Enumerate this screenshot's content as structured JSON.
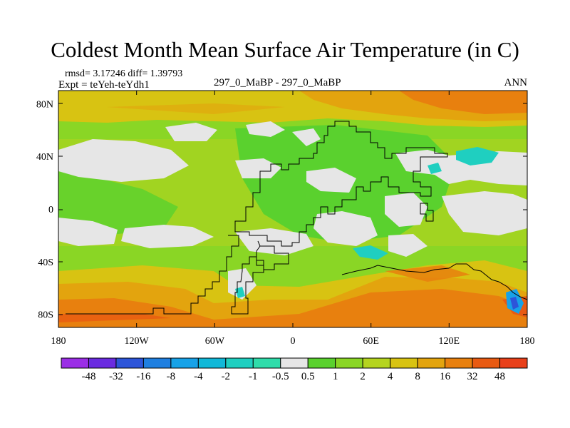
{
  "figure": {
    "title": "Coldest Month Mean Surface Air Temperature (in C)",
    "stats": "rmsd= 3.17246 diff= 1.39793",
    "expt": "Expt = teYeh-teYdh1",
    "center_label": "297_0_MaBP - 297_0_MaBP",
    "season": "ANN"
  },
  "chart_data": {
    "type": "heatmap",
    "title": "Coldest Month Mean Surface Air Temperature (in C)",
    "x_axis": {
      "ticks": [
        -180,
        -120,
        -60,
        0,
        60,
        120,
        180
      ],
      "tick_labels": [
        "180",
        "120W",
        "60W",
        "0",
        "60E",
        "120E",
        "180"
      ]
    },
    "y_axis": {
      "ticks": [
        80,
        40,
        0,
        -40,
        -80
      ],
      "tick_labels": [
        "80N",
        "40N",
        "0",
        "40S",
        "80S"
      ],
      "range": [
        -90,
        90
      ]
    },
    "colorbar": {
      "boundaries": [
        "-48",
        "-32",
        "-16",
        "-8",
        "-4",
        "-2",
        "-1",
        "-0.5",
        "0.5",
        "1",
        "2",
        "4",
        "8",
        "16",
        "32",
        "48"
      ],
      "colors": [
        "#9b2ee6",
        "#6a2be0",
        "#2d55d9",
        "#1f7fe0",
        "#17a2e8",
        "#11b8d8",
        "#1fcfc0",
        "#2fdcaa",
        "#e6e6e6",
        "#5ad12e",
        "#8ad625",
        "#b5d41f",
        "#d8c312",
        "#e3a40e",
        "#e8800e",
        "#e85a12",
        "#e8401a"
      ]
    },
    "regions": [
      {
        "name": "neutral",
        "color": "#e6e6e6",
        "range": "-0.5 to 0.5"
      },
      {
        "name": "warm-1",
        "color": "#5ad12e",
        "range": "0.5 to 1"
      },
      {
        "name": "warm-2",
        "color": "#8ad625",
        "range": "1 to 2"
      },
      {
        "name": "warm-4",
        "color": "#b5d41f",
        "range": "2 to 4"
      },
      {
        "name": "warm-8",
        "color": "#d8c312",
        "range": "4 to 8"
      },
      {
        "name": "warm-16",
        "color": "#e3a40e",
        "range": "8 to 16"
      },
      {
        "name": "warm-32",
        "color": "#e8800e",
        "range": "16 to 32"
      },
      {
        "name": "cool-1",
        "color": "#1fcfc0",
        "range": "-2 to -1"
      }
    ]
  }
}
